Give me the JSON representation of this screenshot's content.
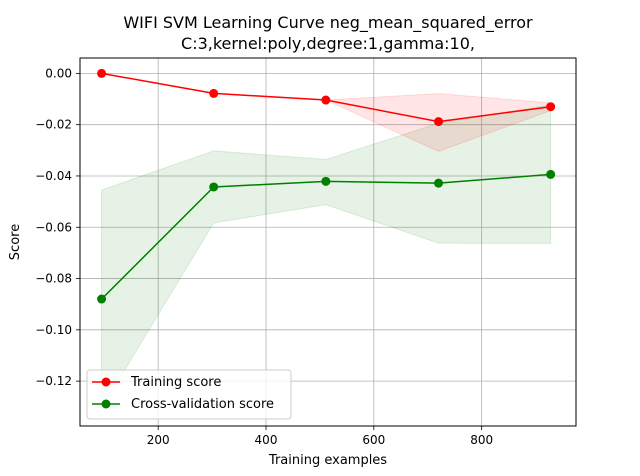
{
  "chart_data": {
    "type": "line",
    "title": "WIFI SVM Learning Curve neg_mean_squared_error",
    "subtitle": "C:3,kernel:poly,degree:1,gamma:10,",
    "xlabel": "Training examples",
    "ylabel": "Score",
    "xlim": [
      55,
      975
    ],
    "ylim": [
      -0.1375,
      0.006
    ],
    "xticks": [
      200,
      400,
      600,
      800
    ],
    "xtick_labels": [
      "200",
      "400",
      "600",
      "800"
    ],
    "yticks": [
      0.0,
      -0.02,
      -0.04,
      -0.06,
      -0.08,
      -0.1,
      -0.12
    ],
    "ytick_labels": [
      "0.00",
      "−0.02",
      "−0.04",
      "−0.06",
      "−0.08",
      "−0.10",
      "−0.12"
    ],
    "grid": true,
    "legend_position": "lower-left",
    "x": [
      95,
      303,
      511,
      720,
      928
    ],
    "series": [
      {
        "name": "Training score",
        "color": "#ff0000",
        "values": [
          0.0,
          -0.0078,
          -0.0104,
          -0.0188,
          -0.013
        ],
        "band_lower": [
          0.0,
          -0.0078,
          -0.0104,
          -0.0304,
          -0.0145
        ],
        "band_upper": [
          0.0,
          -0.0078,
          -0.0104,
          -0.0079,
          -0.0115
        ]
      },
      {
        "name": "Cross-validation score",
        "color": "#008000",
        "values": [
          -0.088,
          -0.0443,
          -0.0421,
          -0.0428,
          -0.0394
        ],
        "band_lower": [
          -0.1305,
          -0.0583,
          -0.0512,
          -0.0662,
          -0.0663
        ],
        "band_upper": [
          -0.0455,
          -0.0302,
          -0.0336,
          -0.0194,
          -0.0123
        ]
      }
    ]
  }
}
